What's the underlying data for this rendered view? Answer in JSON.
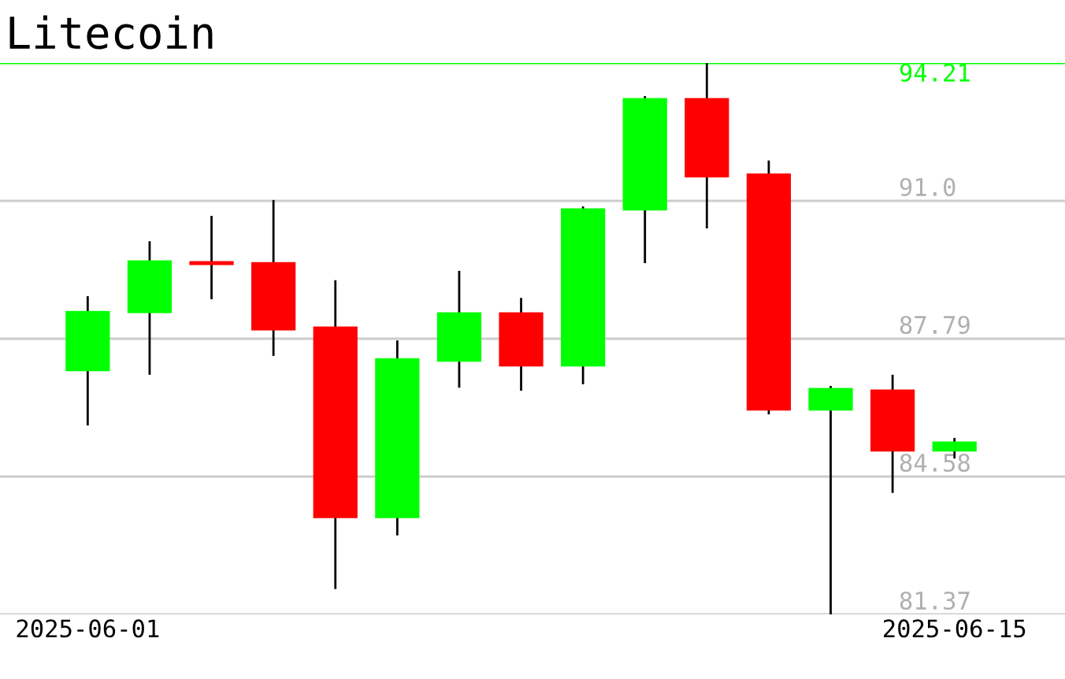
{
  "chart_data": {
    "type": "candlestick",
    "title": "Litecoin",
    "x": [
      "2025-06-01",
      "2025-06-02",
      "2025-06-03",
      "2025-06-04",
      "2025-06-05",
      "2025-06-06",
      "2025-06-07",
      "2025-06-08",
      "2025-06-09",
      "2025-06-10",
      "2025-06-11",
      "2025-06-12",
      "2025-06-13",
      "2025-06-14",
      "2025-06-15"
    ],
    "ohlc": [
      [
        87.06,
        88.78,
        85.77,
        88.41
      ],
      [
        88.41,
        90.06,
        86.95,
        89.59
      ],
      [
        89.55,
        90.65,
        88.71,
        89.53
      ],
      [
        89.55,
        91.02,
        87.39,
        88.01
      ],
      [
        88.05,
        89.15,
        81.96,
        83.64
      ],
      [
        83.64,
        87.75,
        83.21,
        87.31
      ],
      [
        87.28,
        89.37,
        86.65,
        88.38
      ],
      [
        88.38,
        88.74,
        86.58,
        87.17
      ],
      [
        87.17,
        90.87,
        86.73,
        90.8
      ],
      [
        90.8,
        93.44,
        89.55,
        93.37
      ],
      [
        93.37,
        94.21,
        90.36,
        91.57
      ],
      [
        91.61,
        91.94,
        86.03,
        86.14
      ],
      [
        86.14,
        86.69,
        81.37,
        86.62
      ],
      [
        86.58,
        86.95,
        84.2,
        85.19
      ],
      [
        85.19,
        85.48,
        85.0,
        85.37
      ]
    ],
    "colors": [
      "#00ff00",
      "#00ff00",
      "#ff0000",
      "#ff0000",
      "#ff0000",
      "#00ff00",
      "#00ff00",
      "#ff0000",
      "#00ff00",
      "#00ff00",
      "#ff0000",
      "#ff0000",
      "#00ff00",
      "#ff0000",
      "#00ff00"
    ],
    "xlim": [
      "2025-05-30T14:00",
      "2025-06-16T18:50"
    ],
    "xticks": [
      {
        "value": "2025-06-01",
        "label": "2025-06-01"
      },
      {
        "value": "2025-06-15",
        "label": "2025-06-15"
      }
    ],
    "ylim": [
      81.37,
      94.21
    ],
    "yticks": [
      81.37,
      84.58,
      87.79,
      {
        "value": 91.0,
        "label": "91.0"
      }
    ],
    "ref_lines": [
      {
        "axis": "y",
        "value": 94.21,
        "label": "94.21",
        "color": "#00ff00"
      }
    ],
    "grid": "y"
  }
}
